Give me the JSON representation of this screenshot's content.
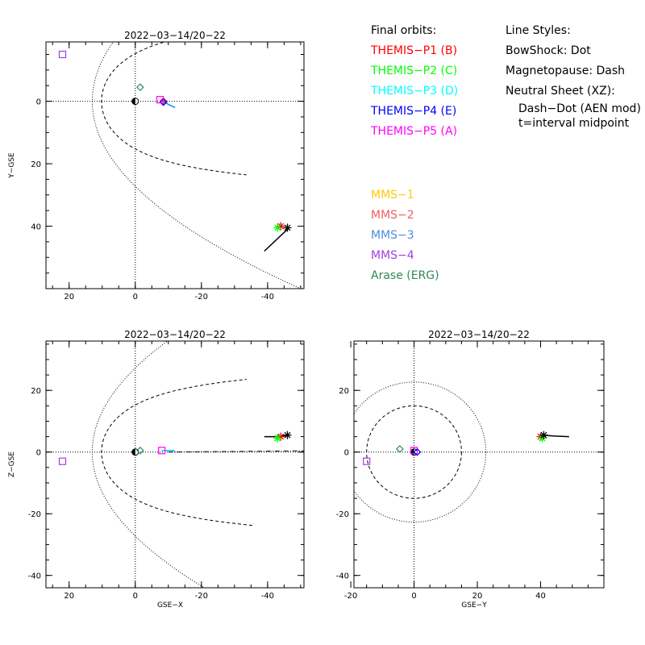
{
  "legend": {
    "orbits_title": "Final orbits:",
    "probes": [
      {
        "label": "THEMIS−P1 (B)",
        "color": "#ff0000"
      },
      {
        "label": "THEMIS−P2 (C)",
        "color": "#00ff00"
      },
      {
        "label": "THEMIS−P3 (D)",
        "color": "#00ffff"
      },
      {
        "label": "THEMIS−P4 (E)",
        "color": "#0000ff"
      },
      {
        "label": "THEMIS−P5 (A)",
        "color": "#ff00ff"
      }
    ],
    "styles_title": "Line Styles:",
    "styles": [
      "BowShock: Dot",
      "Magnetopause: Dash",
      "Neutral Sheet (XZ):",
      "Dash−Dot (AEN mod)",
      "t=interval midpoint"
    ],
    "mms": [
      {
        "label": "MMS−1",
        "color": "#ffcc00"
      },
      {
        "label": "MMS−2",
        "color": "#f06060"
      },
      {
        "label": "MMS−3",
        "color": "#4a90d9"
      },
      {
        "label": "MMS−4",
        "color": "#a040e0"
      },
      {
        "label": "Arase (ERG)",
        "color": "#2e8b57"
      }
    ]
  },
  "chart_data": [
    {
      "type": "scatter",
      "title": "2022−03−14/20−22",
      "xlabel": "",
      "ylabel": "Y−GSE",
      "xlim": [
        27,
        -51
      ],
      "ylim": [
        60,
        -19
      ],
      "xticks": [
        20,
        0,
        -20,
        -40
      ],
      "yticks": [
        0,
        20,
        40
      ],
      "grid": false,
      "plane": "XY",
      "boundaries": {
        "bowshock": "dotted",
        "magnetopause": "dashed"
      },
      "earth": [
        0,
        0
      ],
      "points": [
        {
          "name": "THEMIS−P1",
          "x": -8.5,
          "y": 0,
          "marker": "diamond",
          "color": "#ff0000"
        },
        {
          "name": "THEMIS−P2",
          "x": -1.5,
          "y": -4.5,
          "marker": "diamond",
          "color": "#2e8b57"
        },
        {
          "name": "THEMIS−P4",
          "x": -8.5,
          "y": 0.3,
          "marker": "diamond",
          "color": "#0000ff"
        },
        {
          "name": "THEMIS−P5",
          "x": -7.5,
          "y": -0.5,
          "marker": "square",
          "color": "#ff00ff"
        },
        {
          "name": "MMS−4",
          "x": 22,
          "y": -15,
          "marker": "square",
          "color": "#a040e0"
        },
        {
          "name": "MMS−2",
          "x": -44,
          "y": 40,
          "marker": "star",
          "color": "#ff0000"
        },
        {
          "name": "MMS−1",
          "x": -43,
          "y": 40.5,
          "marker": "star",
          "color": "#00ff00"
        },
        {
          "name": "MMS−3",
          "x": -46,
          "y": 40.5,
          "marker": "star",
          "color": "#000000"
        }
      ],
      "tracks": [
        {
          "name": "track-black",
          "color": "#000000",
          "x": [
            -39,
            -42,
            -45,
            -46.5
          ],
          "y": [
            48,
            45,
            42,
            40.5
          ]
        },
        {
          "name": "track-blue",
          "color": "#0088ff",
          "x": [
            -8.5,
            -10,
            -12
          ],
          "y": [
            0,
            1,
            2
          ]
        }
      ]
    },
    {
      "type": "scatter",
      "title": "2022−03−14/20−22",
      "xlabel": "GSE−X",
      "ylabel": "Z−GSE",
      "xlim": [
        27,
        -51
      ],
      "ylim": [
        -44,
        36
      ],
      "xticks": [
        20,
        0,
        -20,
        -40
      ],
      "yticks": [
        20,
        0,
        -20,
        -40
      ],
      "grid": false,
      "plane": "XZ",
      "boundaries": {
        "bowshock": "dotted",
        "magnetopause": "dashed",
        "neutral_sheet": "dash-dot"
      },
      "earth": [
        0,
        0
      ],
      "points": [
        {
          "name": "THEMIS−P5",
          "x": -8,
          "y": 0.5,
          "marker": "square",
          "color": "#ff00ff"
        },
        {
          "name": "THEMIS−P2",
          "x": -1.5,
          "y": 0.5,
          "marker": "diamond",
          "color": "#2e8b57"
        },
        {
          "name": "MMS−4",
          "x": 22,
          "y": -3,
          "marker": "square",
          "color": "#a040e0"
        },
        {
          "name": "MMS−2",
          "x": -44,
          "y": 5,
          "marker": "star",
          "color": "#ff0000"
        },
        {
          "name": "MMS−1",
          "x": -43,
          "y": 4.5,
          "marker": "star",
          "color": "#00ff00"
        },
        {
          "name": "MMS−3",
          "x": -46,
          "y": 5.5,
          "marker": "star",
          "color": "#000000"
        }
      ],
      "tracks": [
        {
          "name": "track-black",
          "color": "#000000",
          "x": [
            -39,
            -42,
            -46.5
          ],
          "y": [
            5,
            5,
            5.5
          ]
        },
        {
          "name": "track-cyan",
          "color": "#00c8ff",
          "x": [
            -8,
            -10,
            -12
          ],
          "y": [
            0.5,
            0.5,
            0.5
          ]
        }
      ]
    },
    {
      "type": "scatter",
      "title": "2022−03−14/20−22",
      "xlabel": "GSE−Y",
      "ylabel": "",
      "xlim": [
        -19,
        60
      ],
      "ylim": [
        -44,
        36
      ],
      "xticks": [
        -20,
        0,
        20,
        40
      ],
      "yticks": [
        20,
        0,
        -20,
        -40
      ],
      "grid": false,
      "plane": "YZ",
      "boundaries": {
        "bowshock_radius": 22.7,
        "magnetopause_radius": 15
      },
      "earth": [
        0,
        0
      ],
      "points": [
        {
          "name": "THEMIS−P5",
          "x": 0,
          "y": 0.5,
          "marker": "square",
          "color": "#ff00ff"
        },
        {
          "name": "THEMIS−P4",
          "x": 1,
          "y": 0,
          "marker": "diamond",
          "color": "#0000ff"
        },
        {
          "name": "THEMIS−P2",
          "x": -4.5,
          "y": 1,
          "marker": "diamond",
          "color": "#2e8b57"
        },
        {
          "name": "MMS−4",
          "x": -15,
          "y": -3,
          "marker": "square",
          "color": "#a040e0"
        },
        {
          "name": "MMS−2",
          "x": 40,
          "y": 5,
          "marker": "star",
          "color": "#ff0000"
        },
        {
          "name": "MMS−1",
          "x": 40.5,
          "y": 4.5,
          "marker": "star",
          "color": "#00ff00"
        },
        {
          "name": "MMS−3",
          "x": 41,
          "y": 5.5,
          "marker": "star",
          "color": "#000000"
        }
      ],
      "tracks": [
        {
          "name": "track-black",
          "color": "#000000",
          "x": [
            41,
            44,
            49
          ],
          "y": [
            5.5,
            5.2,
            5
          ]
        }
      ]
    }
  ]
}
